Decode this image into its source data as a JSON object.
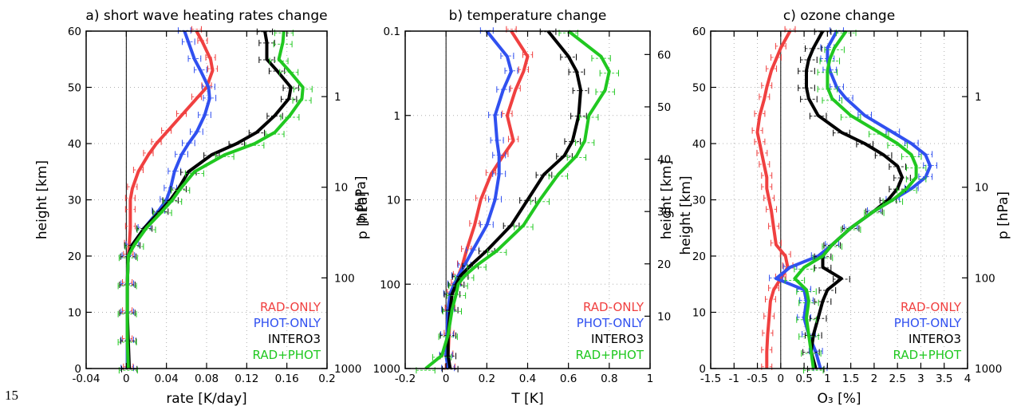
{
  "page": {
    "page_number": "15"
  },
  "legend": {
    "entries": [
      {
        "label": "RAD-ONLY",
        "color": "#f04040"
      },
      {
        "label": "PHOT-ONLY",
        "color": "#3050f0"
      },
      {
        "label": "INTERO3",
        "color": "#000000"
      },
      {
        "label": "RAD+PHOT",
        "color": "#20c820"
      }
    ]
  },
  "chart_data": [
    {
      "type": "line",
      "title": "a) short wave heating rates change",
      "xlabel": "rate [K/day]",
      "ylabel": "height [km]",
      "y2label": "p [hPa]",
      "xlim": [
        -0.04,
        0.2
      ],
      "ylim": [
        0,
        60
      ],
      "xticks": [
        "-0.04",
        "0",
        "0.04",
        "0.08",
        "0.12",
        "0.16",
        "0.2"
      ],
      "yticks": [
        "0",
        "10",
        "20",
        "30",
        "40",
        "50",
        "60"
      ],
      "y2ticks": [
        "1000",
        "100",
        "10",
        "1"
      ],
      "grid": true,
      "legend_position": "bottom-right",
      "y": [
        0,
        5,
        10,
        15,
        20,
        22,
        25,
        28,
        30,
        32,
        35,
        38,
        40,
        42,
        45,
        48,
        50,
        53,
        55,
        58,
        60
      ],
      "series": [
        {
          "name": "RAD-ONLY",
          "values": [
            0.002,
            0.001,
            0.001,
            0.001,
            0.002,
            0.003,
            0.004,
            0.004,
            0.004,
            0.006,
            0.012,
            0.022,
            0.03,
            0.04,
            0.055,
            0.07,
            0.08,
            0.086,
            0.084,
            0.076,
            0.07
          ]
        },
        {
          "name": "PHOT-ONLY",
          "values": [
            0.001,
            0.001,
            0.001,
            0.001,
            0.002,
            0.006,
            0.018,
            0.032,
            0.04,
            0.044,
            0.048,
            0.055,
            0.062,
            0.07,
            0.078,
            0.083,
            0.082,
            0.074,
            0.068,
            0.062,
            0.058
          ]
        },
        {
          "name": "INTERO3",
          "values": [
            0.003,
            0.002,
            0.001,
            0.001,
            0.002,
            0.006,
            0.018,
            0.034,
            0.044,
            0.052,
            0.062,
            0.085,
            0.11,
            0.13,
            0.148,
            0.162,
            0.164,
            0.15,
            0.14,
            0.14,
            0.138
          ]
        },
        {
          "name": "RAD+PHOT",
          "values": [
            0.002,
            0.001,
            0.001,
            0.001,
            0.002,
            0.008,
            0.02,
            0.036,
            0.046,
            0.054,
            0.068,
            0.098,
            0.128,
            0.148,
            0.163,
            0.175,
            0.176,
            0.162,
            0.152,
            0.156,
            0.157
          ]
        }
      ]
    },
    {
      "type": "line",
      "title": "b) temperature change",
      "xlabel": "T [K]",
      "ylabel": "p [hPa]",
      "y2label": "height [km]",
      "xlim": [
        -0.2,
        1
      ],
      "ylim_pressure": [
        1000,
        0.1
      ],
      "y_scale": "log",
      "xticks": [
        "-0.2",
        "0",
        "0.2",
        "0.4",
        "0.6",
        "0.8",
        "1"
      ],
      "yticks": [
        "1000",
        "100",
        "10",
        "1",
        "0.1"
      ],
      "y2ticks": [
        "10",
        "20",
        "30",
        "40",
        "50",
        "60"
      ],
      "grid": true,
      "legend_position": "bottom-right",
      "p": [
        1000,
        700,
        400,
        200,
        130,
        100,
        80,
        60,
        40,
        20,
        10,
        5,
        3,
        2,
        1,
        0.5,
        0.3,
        0.2,
        0.1
      ],
      "series": [
        {
          "name": "RAD-ONLY",
          "values": [
            0.02,
            0.01,
            0.015,
            0.02,
            0.03,
            0.05,
            0.06,
            0.08,
            0.1,
            0.14,
            0.17,
            0.22,
            0.28,
            0.33,
            0.3,
            0.34,
            0.38,
            0.4,
            0.32
          ]
        },
        {
          "name": "PHOT-ONLY",
          "values": [
            0.01,
            0.0,
            0.005,
            0.01,
            0.02,
            0.04,
            0.06,
            0.09,
            0.13,
            0.2,
            0.24,
            0.26,
            0.26,
            0.25,
            0.24,
            0.28,
            0.32,
            0.3,
            0.2
          ]
        },
        {
          "name": "INTERO3",
          "values": [
            0.02,
            0.01,
            0.01,
            0.02,
            0.03,
            0.05,
            0.07,
            0.12,
            0.2,
            0.32,
            0.4,
            0.48,
            0.58,
            0.62,
            0.65,
            0.66,
            0.64,
            0.6,
            0.5
          ]
        },
        {
          "name": "RAD+PHOT",
          "values": [
            -0.1,
            -0.02,
            0.01,
            0.03,
            0.05,
            0.06,
            0.09,
            0.15,
            0.25,
            0.38,
            0.46,
            0.55,
            0.64,
            0.68,
            0.7,
            0.78,
            0.8,
            0.76,
            0.6
          ]
        }
      ]
    },
    {
      "type": "line",
      "title": "c) ozone change",
      "xlabel": "O₃ [%]",
      "ylabel": "height [km]",
      "y2label": "p [hPa]",
      "xlim": [
        -1.5,
        4
      ],
      "ylim": [
        0,
        60
      ],
      "xticks": [
        "-1.5",
        "-1",
        "-0.5",
        "0",
        "0.5",
        "1",
        "1.5",
        "2",
        "2.5",
        "3",
        "3.5",
        "4"
      ],
      "yticks": [
        "0",
        "10",
        "20",
        "30",
        "40",
        "50",
        "60"
      ],
      "y2ticks": [
        "1000",
        "100",
        "10",
        "1"
      ],
      "grid": true,
      "legend_position": "bottom-right",
      "y": [
        0,
        3,
        6,
        9,
        12,
        14,
        16,
        18,
        20,
        22,
        25,
        28,
        30,
        32,
        34,
        36,
        38,
        40,
        42,
        45,
        48,
        50,
        53,
        55,
        57,
        60
      ],
      "series": [
        {
          "name": "RAD-ONLY",
          "values": [
            -0.3,
            -0.3,
            -0.28,
            -0.25,
            -0.22,
            -0.15,
            0.0,
            0.15,
            0.1,
            -0.1,
            -0.15,
            -0.2,
            -0.25,
            -0.3,
            -0.3,
            -0.35,
            -0.4,
            -0.45,
            -0.5,
            -0.45,
            -0.35,
            -0.3,
            -0.2,
            -0.1,
            0.0,
            0.2
          ]
        },
        {
          "name": "PHOT-ONLY",
          "values": [
            0.85,
            0.75,
            0.6,
            0.5,
            0.55,
            0.5,
            -0.1,
            0.2,
            0.8,
            1.1,
            1.5,
            2.0,
            2.4,
            2.8,
            3.1,
            3.2,
            3.1,
            2.8,
            2.4,
            1.8,
            1.4,
            1.2,
            1.05,
            1.0,
            1.0,
            1.2
          ]
        },
        {
          "name": "INTERO3",
          "values": [
            0.75,
            0.65,
            0.7,
            0.8,
            0.9,
            1.0,
            1.3,
            0.9,
            0.9,
            1.1,
            1.5,
            2.0,
            2.3,
            2.5,
            2.6,
            2.5,
            2.2,
            1.8,
            1.3,
            0.8,
            0.6,
            0.55,
            0.55,
            0.6,
            0.7,
            0.9
          ]
        },
        {
          "name": "RAD+PHOT",
          "values": [
            0.7,
            0.65,
            0.6,
            0.55,
            0.6,
            0.55,
            0.3,
            0.5,
            0.9,
            1.1,
            1.5,
            2.0,
            2.4,
            2.7,
            2.9,
            2.9,
            2.8,
            2.5,
            2.1,
            1.5,
            1.1,
            1.0,
            1.0,
            1.05,
            1.15,
            1.4
          ]
        }
      ]
    }
  ]
}
